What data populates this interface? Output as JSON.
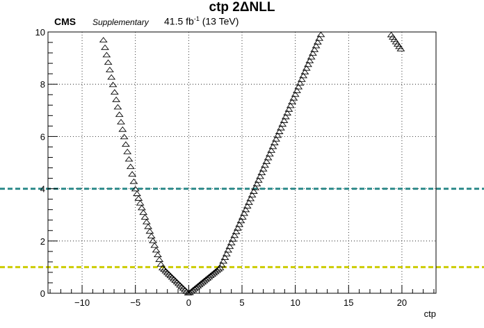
{
  "header": {
    "title": "ctp 2ΔNLL",
    "experiment": "CMS",
    "tag": "Supplementary",
    "lumi_value": "41.5 fb",
    "lumi_exp": "-1",
    "energy": " (13 TeV)"
  },
  "chart_data": {
    "type": "scatter",
    "title": "ctp 2ΔNLL",
    "xlabel": "ctp",
    "ylabel": "",
    "xlim": [
      -13.2,
      23.2
    ],
    "ylim": [
      0,
      10
    ],
    "xticks": [
      -10,
      -5,
      0,
      5,
      10,
      15,
      20
    ],
    "yticks": [
      0,
      2,
      4,
      6,
      8,
      10
    ],
    "grid": true,
    "marker": "open-triangle",
    "reference_lines": [
      {
        "y": 4,
        "style": "dashed",
        "color": "#2e8b8b"
      },
      {
        "y": 1,
        "style": "dashed",
        "color": "#cccc00"
      }
    ],
    "scan": {
      "x_min": -8,
      "x_max": 20,
      "step": 0.15,
      "left_branch": {
        "x_from": -8,
        "x_to": 0,
        "x": [
          -8,
          -5,
          -2.5,
          0
        ],
        "y": [
          9.7,
          4.0,
          1.0,
          0
        ]
      },
      "right_branch": {
        "x_from": 0,
        "x_to": 12.5,
        "x": [
          0,
          3,
          6.2,
          12.5
        ],
        "y": [
          0,
          1.0,
          4.0,
          10.0
        ]
      },
      "far_branch": {
        "x_from": 19,
        "x_to": 20,
        "x": [
          19,
          20
        ],
        "y": [
          9.9,
          9.3
        ]
      }
    }
  }
}
